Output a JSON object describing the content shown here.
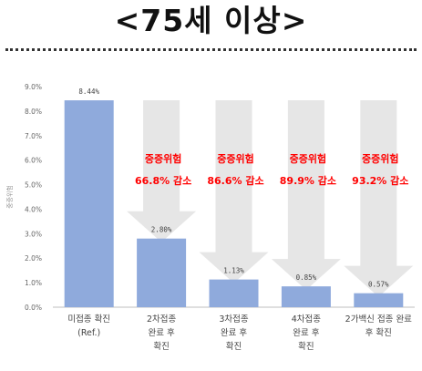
{
  "page": {
    "title": "<75세 이상>"
  },
  "chart_data": {
    "type": "bar",
    "title": "<75세 이상>",
    "ylabel": "중증위험",
    "xlabel": "",
    "ylim": [
      0,
      9
    ],
    "yticks": [
      "0.0%",
      "1.0%",
      "2.0%",
      "3.0%",
      "4.0%",
      "5.0%",
      "6.0%",
      "7.0%",
      "8.0%",
      "9.0%"
    ],
    "categories": [
      [
        "미접종 확진",
        "(Ref.)"
      ],
      [
        "2차접종",
        "완료 후",
        "확진"
      ],
      [
        "3차접종",
        "완료 후",
        "확진"
      ],
      [
        "4차접종",
        "완료 후",
        "확진"
      ],
      [
        "2가백신 접종 완료",
        "후 확진"
      ]
    ],
    "values": [
      8.44,
      2.8,
      1.13,
      0.85,
      0.57
    ],
    "value_labels": [
      "8.44%",
      "2.80%",
      "1.13%",
      "0.85%",
      "0.57%"
    ],
    "annotations": [
      null,
      [
        "중증위험",
        "66.8% 감소"
      ],
      [
        "중증위험",
        "86.6% 감소"
      ],
      [
        "중증위험",
        "89.9% 감소"
      ],
      [
        "중증위험",
        "93.2% 감소"
      ]
    ],
    "grid": false,
    "bar_color": "#8faadc",
    "arrow_color": "#e6e6e6",
    "annotation_color": "#ff0000"
  }
}
